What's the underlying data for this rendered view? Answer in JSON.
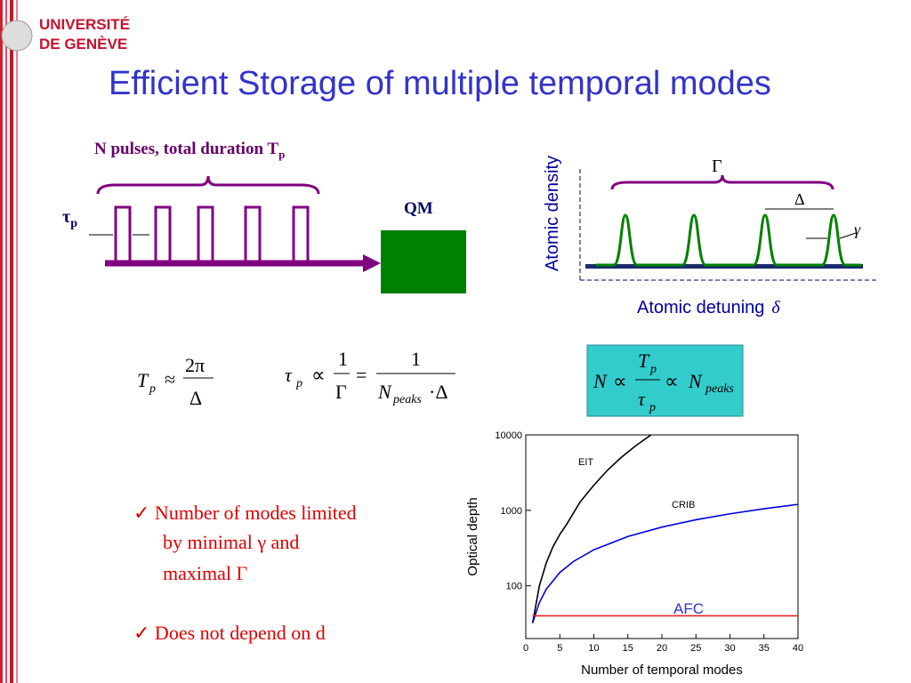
{
  "header": {
    "logo": [
      "UNIVERSITÉ",
      "DE GENÈVE"
    ],
    "title": "Efficient Storage of multiple temporal modes"
  },
  "pulses_diagram": {
    "caption": "N pulses, total duration T",
    "caption_sub": "p",
    "tau": "τ",
    "tau_sub": "p",
    "qm": "QM"
  },
  "spectrum_diagram": {
    "y_label": "Atomic density",
    "x_label": "Atomic detuning",
    "x_symbol": "δ",
    "gamma_big": "Γ",
    "delta": "Δ",
    "gamma_small": "γ"
  },
  "formulas": [
    [
      "T",
      "p",
      "≈",
      "2π",
      "Δ"
    ],
    [
      "τ",
      "p",
      "∝",
      "1",
      "Γ",
      "=",
      "1",
      "N",
      "peaks",
      "·Δ"
    ],
    [
      "N",
      "∝",
      "T",
      "p",
      "τ",
      "p",
      "∝",
      "N",
      "peaks"
    ]
  ],
  "bullets": [
    "✓ Number of modes limited",
    "by minimal γ and",
    "maximal Γ",
    "✓ Does not depend on d"
  ],
  "chart_data": {
    "type": "line",
    "xlabel": "Number of temporal modes",
    "ylabel": "Optical depth",
    "xlim": [
      0,
      40
    ],
    "xticks": [
      0,
      5,
      10,
      15,
      20,
      25,
      30,
      35,
      40
    ],
    "ylim": [
      20,
      10000
    ],
    "yticks": [
      100,
      1000,
      10000
    ],
    "log_y": true,
    "series": [
      {
        "name": "EIT",
        "color": "#000000",
        "x": [
          1,
          2,
          3,
          4,
          5,
          6,
          8,
          10,
          12,
          14,
          16,
          18.4
        ],
        "values": [
          32,
          100,
          200,
          330,
          480,
          650,
          1300,
          2150,
          3400,
          5000,
          7000,
          10000
        ]
      },
      {
        "name": "CRIB",
        "color": "#0000dd",
        "x": [
          1,
          2,
          3,
          5,
          7,
          10,
          15,
          20,
          25,
          30,
          35,
          40
        ],
        "values": [
          32,
          60,
          90,
          150,
          210,
          300,
          450,
          600,
          750,
          900,
          1050,
          1200
        ]
      },
      {
        "name": "AFC",
        "color": "#ee2222",
        "x": [
          1,
          40
        ],
        "values": [
          40,
          40
        ]
      }
    ]
  }
}
